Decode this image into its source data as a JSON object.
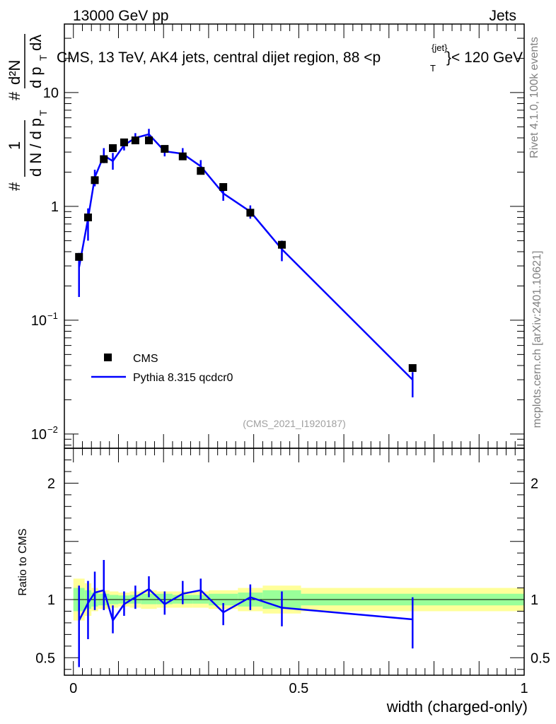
{
  "header": {
    "energy_label": "13000 GeV pp",
    "category_label": "Jets",
    "plot_title": "CMS, 13 TeV, AK4 jets, central dijet region, 88 <p",
    "title_sup": "{jet}",
    "title_sub": "T",
    "title_tail": "}< 120 GeV",
    "rivet_label": "Rivet 4.1.0,  100k events",
    "site_label": "mcplots.cern.ch [arXiv:2401.10621]",
    "analysis_id": "(CMS_2021_I1920187)"
  },
  "y_axis_label": {
    "numerator": "d²N",
    "numerator_left": "#",
    "denominator": "d p",
    "denominator_sub": "T",
    "denominator_tail": "dλ",
    "prefactor_one": "1",
    "prefactor_den": "d N / d p",
    "prefactor_sub": "T",
    "hash": "#"
  },
  "legend": {
    "data_label": "CMS",
    "mc_label": "Pythia 8.315 qcdcr0"
  },
  "colors": {
    "data": "#000000",
    "mc": "#0000ff",
    "band_inner": "#99ff99",
    "band_outer": "#ffff99"
  },
  "chart_data": [
    {
      "type": "scatter",
      "panel": "main",
      "scale": "log",
      "title": "CMS, 13 TeV, AK4 jets, central dijet region, 88 < pT{jet} < 120 GeV",
      "xlabel": "width (charged-only)",
      "ylabel": "1 / (dN/dpT) d2N / dpT dlambda",
      "xlim": [
        -0.02,
        1.0
      ],
      "ylim": [
        0.0075,
        40
      ],
      "y_ticks": [
        {
          "value": 0.01,
          "label": "10",
          "exp": "−2"
        },
        {
          "value": 0.1,
          "label": "10",
          "exp": "−1"
        },
        {
          "value": 1,
          "label": "1",
          "exp": ""
        },
        {
          "value": 10,
          "label": "10",
          "exp": ""
        }
      ],
      "series": [
        {
          "name": "CMS",
          "style": "markers",
          "x": [
            0.0125,
            0.0325,
            0.0475,
            0.0675,
            0.0875,
            0.1125,
            0.1375,
            0.1675,
            0.2025,
            0.2425,
            0.2825,
            0.3325,
            0.3925,
            0.4625,
            0.7525
          ],
          "y": [
            0.36,
            0.8,
            1.7,
            2.6,
            3.25,
            3.65,
            3.8,
            3.8,
            3.2,
            2.75,
            2.05,
            1.48,
            0.88,
            0.46,
            0.038
          ]
        },
        {
          "name": "Pythia 8.315 qcdcr0",
          "style": "line",
          "x": [
            0.0125,
            0.0325,
            0.0475,
            0.0675,
            0.0875,
            0.1125,
            0.1375,
            0.1675,
            0.2025,
            0.2425,
            0.2825,
            0.3325,
            0.3925,
            0.4625,
            0.7525
          ],
          "y": [
            0.29,
            0.78,
            1.8,
            2.8,
            2.5,
            3.45,
            4.0,
            4.3,
            3.05,
            2.9,
            2.25,
            1.3,
            0.9,
            0.42,
            0.03
          ],
          "yerr_low": [
            0.13,
            0.28,
            0.3,
            0.4,
            0.4,
            0.35,
            0.4,
            0.4,
            0.3,
            0.3,
            0.25,
            0.18,
            0.12,
            0.09,
            0.009
          ],
          "yerr_high": [
            0.1,
            0.18,
            0.3,
            0.45,
            0.45,
            0.4,
            0.4,
            0.5,
            0.3,
            0.35,
            0.3,
            0.22,
            0.12,
            0.08,
            0.005
          ]
        }
      ]
    },
    {
      "type": "line",
      "panel": "ratio",
      "scale": "linear",
      "xlabel": "width (charged-only)",
      "ylabel": "Ratio to CMS",
      "xlim": [
        -0.02,
        1.0
      ],
      "ylim": [
        0.35,
        2.3
      ],
      "y_ticks": [
        0.5,
        1,
        2
      ],
      "x_ticks": [
        0,
        0.5,
        1
      ],
      "x_tick_labels": [
        "0",
        "0.5",
        "1"
      ],
      "reference_line": 1,
      "bands": {
        "edges": [
          0.0,
          0.025,
          0.04,
          0.055,
          0.08,
          0.1,
          0.125,
          0.15,
          0.185,
          0.22,
          0.265,
          0.3,
          0.365,
          0.42,
          0.505,
          1.0
        ],
        "inner_low": [
          0.9,
          0.92,
          0.94,
          0.95,
          0.96,
          0.965,
          0.965,
          0.96,
          0.96,
          0.965,
          0.965,
          0.95,
          0.94,
          0.92,
          0.95
        ],
        "inner_high": [
          1.1,
          1.08,
          1.06,
          1.05,
          1.04,
          1.035,
          1.04,
          1.05,
          1.05,
          1.04,
          1.04,
          1.05,
          1.06,
          1.08,
          1.05
        ],
        "outer_low": [
          0.82,
          0.86,
          0.9,
          0.92,
          0.93,
          0.94,
          0.93,
          0.92,
          0.93,
          0.93,
          0.93,
          0.92,
          0.9,
          0.88,
          0.9
        ],
        "outer_high": [
          1.18,
          1.14,
          1.1,
          1.08,
          1.07,
          1.06,
          1.07,
          1.08,
          1.07,
          1.07,
          1.07,
          1.08,
          1.1,
          1.12,
          1.1
        ]
      },
      "series": [
        {
          "name": "Pythia 8.315 qcdcr0 / CMS",
          "x": [
            0.0125,
            0.0325,
            0.0475,
            0.0675,
            0.0875,
            0.1125,
            0.1375,
            0.1675,
            0.2025,
            0.2425,
            0.2825,
            0.3325,
            0.3925,
            0.4625,
            0.7525
          ],
          "y": [
            0.82,
            0.97,
            1.06,
            1.08,
            0.82,
            0.96,
            1.02,
            1.09,
            0.96,
            1.05,
            1.08,
            0.89,
            1.02,
            0.93,
            0.83
          ],
          "yerr_low": [
            0.4,
            0.31,
            0.15,
            0.17,
            0.11,
            0.1,
            0.1,
            0.07,
            0.09,
            0.09,
            0.08,
            0.11,
            0.11,
            0.16,
            0.25
          ],
          "yerr_high": [
            0.3,
            0.19,
            0.18,
            0.26,
            0.13,
            0.11,
            0.1,
            0.11,
            0.11,
            0.11,
            0.1,
            0.08,
            0.11,
            0.14,
            0.19
          ]
        }
      ]
    }
  ]
}
